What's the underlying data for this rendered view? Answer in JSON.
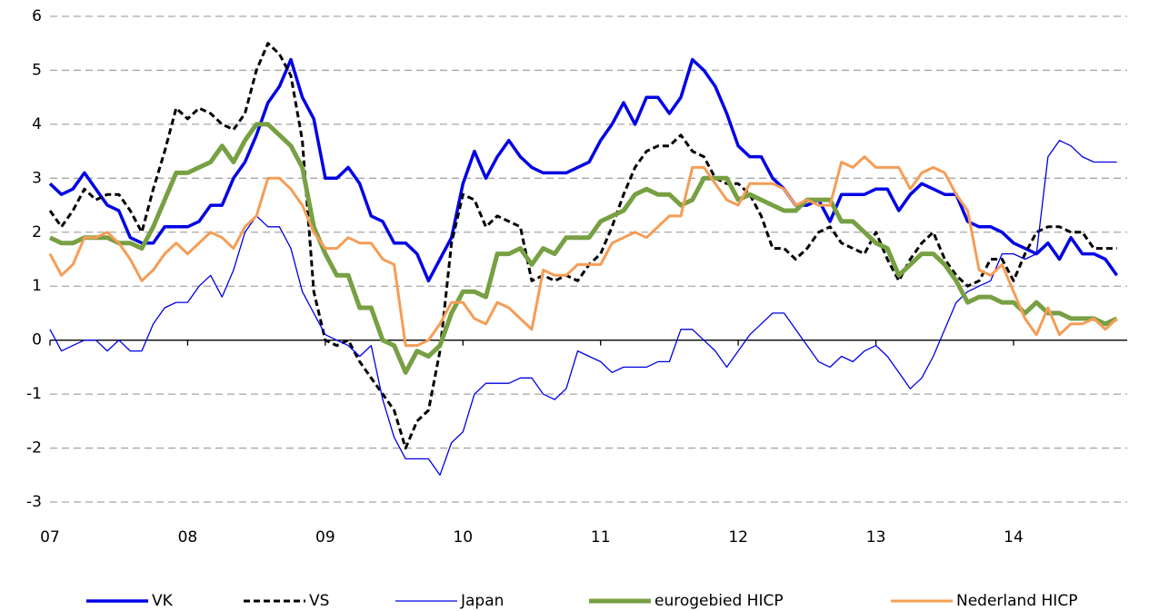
{
  "chart_data": {
    "type": "line",
    "categories": [
      "07",
      null,
      null,
      null,
      null,
      null,
      null,
      null,
      null,
      null,
      null,
      null,
      "08",
      null,
      null,
      null,
      null,
      null,
      null,
      null,
      null,
      null,
      null,
      null,
      "09",
      null,
      null,
      null,
      null,
      null,
      null,
      null,
      null,
      null,
      null,
      null,
      "10",
      null,
      null,
      null,
      null,
      null,
      null,
      null,
      null,
      null,
      null,
      null,
      "11",
      null,
      null,
      null,
      null,
      null,
      null,
      null,
      null,
      null,
      null,
      null,
      "12",
      null,
      null,
      null,
      null,
      null,
      null,
      null,
      null,
      null,
      null,
      null,
      "13",
      null,
      null,
      null,
      null,
      null,
      null,
      null,
      null,
      null,
      null,
      null,
      "14",
      null,
      null,
      null,
      null,
      null,
      null,
      null,
      null,
      null
    ],
    "ylim": [
      -3,
      6
    ],
    "yticks": [
      -3,
      -2,
      -1,
      0,
      1,
      2,
      3,
      4,
      5,
      6
    ],
    "grid": true,
    "legend": "bottom",
    "series": [
      {
        "name": "VK",
        "color": "#0000e6",
        "width": 3.5,
        "dash": false,
        "values": [
          2.9,
          2.7,
          2.8,
          3.1,
          2.8,
          2.5,
          2.4,
          1.9,
          1.8,
          1.8,
          2.1,
          2.1,
          2.1,
          2.2,
          2.5,
          2.5,
          3.0,
          3.3,
          3.8,
          4.4,
          4.7,
          5.2,
          4.5,
          4.1,
          3.0,
          3.0,
          3.2,
          2.9,
          2.3,
          2.2,
          1.8,
          1.8,
          1.6,
          1.1,
          1.5,
          1.9,
          2.9,
          3.5,
          3.0,
          3.4,
          3.7,
          3.4,
          3.2,
          3.1,
          3.1,
          3.1,
          3.2,
          3.3,
          3.7,
          4.0,
          4.4,
          4.0,
          4.5,
          4.5,
          4.2,
          4.5,
          5.2,
          5.0,
          4.7,
          4.2,
          3.6,
          3.4,
          3.4,
          3.0,
          2.8,
          2.5,
          2.5,
          2.6,
          2.2,
          2.7,
          2.7,
          2.7,
          2.8,
          2.8,
          2.4,
          2.7,
          2.9,
          2.8,
          2.7,
          2.7,
          2.2,
          2.1,
          2.1,
          2.0,
          1.8,
          1.7,
          1.6,
          1.8,
          1.5,
          1.9,
          1.6,
          1.6,
          1.5,
          1.2
        ]
      },
      {
        "name": "VS",
        "color": "#000000",
        "width": 3,
        "dash": true,
        "values": [
          2.4,
          2.1,
          2.4,
          2.8,
          2.6,
          2.7,
          2.7,
          2.4,
          2.0,
          2.8,
          3.5,
          4.3,
          4.1,
          4.3,
          4.2,
          4.0,
          3.9,
          4.2,
          5.0,
          5.5,
          5.3,
          4.9,
          3.7,
          0.9,
          0.0,
          -0.1,
          0.0,
          -0.4,
          -0.7,
          -1.0,
          -1.3,
          -2.0,
          -1.5,
          -1.3,
          -0.2,
          1.8,
          2.7,
          2.6,
          2.1,
          2.3,
          2.2,
          2.1,
          1.1,
          1.2,
          1.1,
          1.2,
          1.1,
          1.4,
          1.6,
          2.1,
          2.7,
          3.2,
          3.5,
          3.6,
          3.6,
          3.8,
          3.5,
          3.4,
          3.0,
          2.9,
          2.9,
          2.7,
          2.3,
          1.7,
          1.7,
          1.5,
          1.7,
          2.0,
          2.1,
          1.8,
          1.7,
          1.6,
          2.0,
          1.5,
          1.1,
          1.5,
          1.8,
          2.0,
          1.5,
          1.2,
          1.0,
          1.1,
          1.5,
          1.5,
          1.1,
          1.6,
          2.0,
          2.1,
          2.1,
          2.0,
          2.0,
          1.7,
          1.7,
          1.7
        ]
      },
      {
        "name": "Japan",
        "color": "#0000e6",
        "width": 1.3,
        "dash": false,
        "values": [
          0.2,
          -0.2,
          -0.1,
          0.0,
          0.0,
          -0.2,
          0.0,
          -0.2,
          -0.2,
          0.3,
          0.6,
          0.7,
          0.7,
          1.0,
          1.2,
          0.8,
          1.3,
          2.0,
          2.3,
          2.1,
          2.1,
          1.7,
          0.9,
          0.5,
          0.1,
          0.0,
          -0.1,
          -0.3,
          -0.1,
          -1.1,
          -1.8,
          -2.2,
          -2.2,
          -2.2,
          -2.5,
          -1.9,
          -1.7,
          -1.0,
          -0.8,
          -0.8,
          -0.8,
          -0.7,
          -0.7,
          -1.0,
          -1.1,
          -0.9,
          -0.2,
          -0.3,
          -0.4,
          -0.6,
          -0.5,
          -0.5,
          -0.5,
          -0.4,
          -0.4,
          0.2,
          0.2,
          0.0,
          -0.2,
          -0.5,
          -0.2,
          0.1,
          0.3,
          0.5,
          0.5,
          0.2,
          -0.1,
          -0.4,
          -0.5,
          -0.3,
          -0.4,
          -0.2,
          -0.1,
          -0.3,
          -0.6,
          -0.9,
          -0.7,
          -0.3,
          0.2,
          0.7,
          0.9,
          1.0,
          1.1,
          1.6,
          1.6,
          1.5,
          1.6,
          3.4,
          3.7,
          3.6,
          3.4,
          3.3,
          3.3,
          3.3
        ]
      },
      {
        "name": "eurogebied HICP",
        "color": "#77a043",
        "width": 5,
        "dash": false,
        "values": [
          1.9,
          1.8,
          1.8,
          1.9,
          1.9,
          1.9,
          1.8,
          1.8,
          1.7,
          2.1,
          2.6,
          3.1,
          3.1,
          3.2,
          3.3,
          3.6,
          3.3,
          3.7,
          4.0,
          4.0,
          3.8,
          3.6,
          3.2,
          2.1,
          1.6,
          1.2,
          1.2,
          0.6,
          0.6,
          0.0,
          -0.1,
          -0.6,
          -0.2,
          -0.3,
          -0.1,
          0.5,
          0.9,
          0.9,
          0.8,
          1.6,
          1.6,
          1.7,
          1.4,
          1.7,
          1.6,
          1.9,
          1.9,
          1.9,
          2.2,
          2.3,
          2.4,
          2.7,
          2.8,
          2.7,
          2.7,
          2.5,
          2.6,
          3.0,
          3.0,
          3.0,
          2.6,
          2.7,
          2.6,
          2.5,
          2.4,
          2.4,
          2.6,
          2.6,
          2.6,
          2.2,
          2.2,
          2.0,
          1.8,
          1.7,
          1.2,
          1.4,
          1.6,
          1.6,
          1.4,
          1.1,
          0.7,
          0.8,
          0.8,
          0.7,
          0.7,
          0.5,
          0.7,
          0.5,
          0.5,
          0.4,
          0.4,
          0.4,
          0.3,
          0.4
        ]
      },
      {
        "name": "Nederland HICP",
        "color": "#f59d56",
        "width": 3,
        "dash": false,
        "values": [
          1.6,
          1.2,
          1.4,
          1.9,
          1.9,
          2.0,
          1.8,
          1.5,
          1.1,
          1.3,
          1.6,
          1.8,
          1.6,
          1.8,
          2.0,
          1.9,
          1.7,
          2.1,
          2.3,
          3.0,
          3.0,
          2.8,
          2.5,
          2.0,
          1.7,
          1.7,
          1.9,
          1.8,
          1.8,
          1.5,
          1.4,
          -0.1,
          -0.1,
          0.0,
          0.3,
          0.7,
          0.7,
          0.4,
          0.3,
          0.7,
          0.6,
          0.4,
          0.2,
          1.3,
          1.2,
          1.2,
          1.4,
          1.4,
          1.4,
          1.8,
          1.9,
          2.0,
          1.9,
          2.1,
          2.3,
          2.3,
          3.2,
          3.2,
          2.9,
          2.6,
          2.5,
          2.9,
          2.9,
          2.9,
          2.8,
          2.5,
          2.6,
          2.5,
          2.5,
          3.3,
          3.2,
          3.4,
          3.2,
          3.2,
          3.2,
          2.8,
          3.1,
          3.2,
          3.1,
          2.7,
          2.4,
          1.3,
          1.2,
          1.4,
          0.9,
          0.4,
          0.1,
          0.6,
          0.1,
          0.3,
          0.3,
          0.4,
          0.2,
          0.4
        ]
      }
    ]
  }
}
